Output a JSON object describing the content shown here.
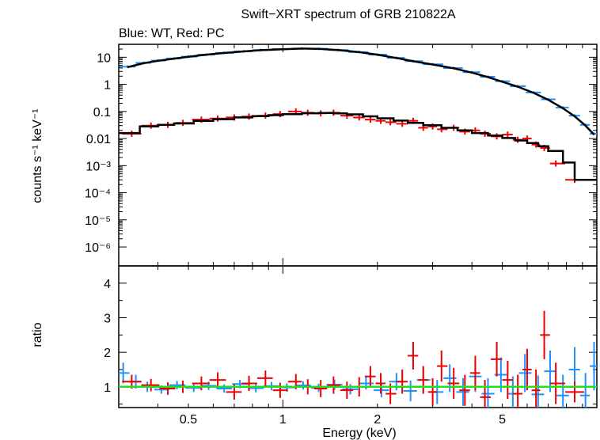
{
  "title": "Swift−XRT spectrum of GRB 210822A",
  "subtitle": "Blue: WT, Red: PC",
  "colors": {
    "wt": "#1e90ff",
    "pc": "#ee0000",
    "model": "#000000",
    "unity": "#22dd22",
    "axis": "#000000"
  },
  "chart_data": [
    {
      "type": "scatter",
      "name": "spectrum-panel",
      "xlabel": "Energy (keV)",
      "ylabel": "counts s⁻¹ keV⁻¹",
      "x_scale": "log",
      "y_scale": "log",
      "xlim": [
        0.3,
        10
      ],
      "ylim": [
        2e-07,
        30
      ],
      "yticks": [
        {
          "value": 10,
          "label": "10"
        },
        {
          "value": 1,
          "label": "1"
        },
        {
          "value": 0.1,
          "label": "0.1"
        },
        {
          "value": 0.01,
          "label": "0.01"
        },
        {
          "value": 0.001,
          "label": "10⁻³"
        },
        {
          "value": 0.0001,
          "label": "10⁻⁴"
        },
        {
          "value": 1e-05,
          "label": "10⁻⁵"
        },
        {
          "value": 1e-06,
          "label": "10⁻⁶"
        }
      ],
      "series": [
        {
          "color": "wt",
          "kind": "data",
          "x": [
            0.32,
            0.36,
            0.4,
            0.45,
            0.5,
            0.57,
            0.65,
            0.75,
            0.85,
            1.0,
            1.15,
            1.3,
            1.5,
            1.75,
            2.0,
            2.3,
            2.6,
            3.0,
            3.5,
            4.0,
            4.5,
            5.0,
            5.6,
            6.3,
            7.0,
            7.8,
            8.5,
            9.2,
            9.8
          ],
          "y": [
            4.5,
            6.2,
            7.5,
            9.0,
            10.5,
            12.5,
            14.5,
            16.5,
            18.5,
            20.0,
            21.0,
            20.5,
            18.5,
            15.5,
            12.5,
            9.5,
            7.2,
            5.5,
            4.0,
            2.8,
            1.9,
            1.3,
            0.85,
            0.5,
            0.28,
            0.14,
            0.07,
            0.032,
            0.015
          ]
        },
        {
          "color": "model",
          "kind": "model",
          "x": [
            0.32,
            0.36,
            0.4,
            0.45,
            0.5,
            0.57,
            0.65,
            0.75,
            0.85,
            1.0,
            1.15,
            1.3,
            1.5,
            1.75,
            2.0,
            2.3,
            2.6,
            3.0,
            3.5,
            4.0,
            4.5,
            5.0,
            5.6,
            6.3,
            7.0,
            7.8,
            8.5,
            9.2,
            9.8
          ],
          "y": [
            4.3,
            6.0,
            7.4,
            8.9,
            10.4,
            12.4,
            14.4,
            16.4,
            18.3,
            19.8,
            20.8,
            20.3,
            18.4,
            15.4,
            12.4,
            9.4,
            7.1,
            5.4,
            3.9,
            2.7,
            1.85,
            1.25,
            0.82,
            0.48,
            0.27,
            0.13,
            0.066,
            0.03,
            0.014
          ]
        },
        {
          "color": "pc",
          "kind": "data",
          "x": [
            0.33,
            0.38,
            0.43,
            0.48,
            0.55,
            0.62,
            0.7,
            0.78,
            0.88,
            0.98,
            1.1,
            1.2,
            1.32,
            1.45,
            1.6,
            1.75,
            1.9,
            2.05,
            2.2,
            2.4,
            2.6,
            2.8,
            3.0,
            3.2,
            3.5,
            3.8,
            4.1,
            4.4,
            4.8,
            5.2,
            5.6,
            6.0,
            6.4,
            6.8,
            7.4,
            8.5
          ],
          "y": [
            0.015,
            0.03,
            0.032,
            0.038,
            0.05,
            0.055,
            0.06,
            0.065,
            0.07,
            0.08,
            0.1,
            0.09,
            0.085,
            0.09,
            0.07,
            0.06,
            0.05,
            0.045,
            0.04,
            0.035,
            0.045,
            0.025,
            0.028,
            0.022,
            0.025,
            0.018,
            0.02,
            0.015,
            0.012,
            0.014,
            0.009,
            0.01,
            0.006,
            0.0045,
            0.0012,
            0.0003
          ]
        },
        {
          "color": "model",
          "kind": "model-step",
          "x": [
            0.3,
            0.35,
            0.4,
            0.45,
            0.52,
            0.6,
            0.7,
            0.8,
            0.9,
            1.0,
            1.15,
            1.3,
            1.45,
            1.6,
            1.8,
            2.0,
            2.25,
            2.5,
            2.8,
            3.2,
            3.6,
            4.0,
            4.5,
            5.0,
            5.5,
            6.0,
            6.5,
            7.0,
            7.8,
            8.5,
            10.0
          ],
          "y": [
            0.016,
            0.028,
            0.032,
            0.036,
            0.045,
            0.052,
            0.06,
            0.067,
            0.073,
            0.08,
            0.086,
            0.088,
            0.085,
            0.078,
            0.066,
            0.056,
            0.046,
            0.038,
            0.031,
            0.025,
            0.02,
            0.016,
            0.013,
            0.0105,
            0.0085,
            0.0068,
            0.0052,
            0.0035,
            0.0013,
            0.0003,
            0.0003
          ]
        }
      ]
    },
    {
      "type": "scatter",
      "name": "ratio-panel",
      "xlabel": "Energy (keV)",
      "ylabel": "ratio",
      "x_scale": "log",
      "y_scale": "linear",
      "xlim": [
        0.3,
        10
      ],
      "ylim": [
        0.4,
        4.5
      ],
      "yticks": [
        1,
        2,
        3,
        4
      ],
      "xticks": [
        {
          "value": 0.5,
          "label": "0.5"
        },
        {
          "value": 1,
          "label": "1"
        },
        {
          "value": 2,
          "label": "2"
        },
        {
          "value": 5,
          "label": "5"
        }
      ],
      "unity": 1,
      "series": [
        {
          "color": "wt",
          "x": [
            0.31,
            0.34,
            0.37,
            0.41,
            0.46,
            0.52,
            0.58,
            0.65,
            0.73,
            0.82,
            0.92,
            1.03,
            1.16,
            1.3,
            1.46,
            1.64,
            1.84,
            2.06,
            2.3,
            2.55,
            2.8,
            3.1,
            3.4,
            3.75,
            4.1,
            4.5,
            4.95,
            5.4,
            5.9,
            6.5,
            7.1,
            7.8,
            8.5,
            9.2,
            9.8
          ],
          "y": [
            1.4,
            1.15,
            1.0,
            0.92,
            1.05,
            0.97,
            1.03,
            0.95,
            1.08,
            0.96,
            1.02,
            0.98,
            1.04,
            0.97,
            1.06,
            0.93,
            1.1,
            0.9,
            1.15,
            0.88,
            1.2,
            0.85,
            1.25,
            0.85,
            1.3,
            0.8,
            1.35,
            0.8,
            1.4,
            0.78,
            1.45,
            0.75,
            1.5,
            0.75,
            1.6
          ],
          "yerr": [
            0.3,
            0.2,
            0.15,
            0.12,
            0.12,
            0.12,
            0.12,
            0.12,
            0.12,
            0.12,
            0.12,
            0.12,
            0.12,
            0.12,
            0.15,
            0.15,
            0.18,
            0.2,
            0.25,
            0.3,
            0.35,
            0.35,
            0.4,
            0.4,
            0.45,
            0.45,
            0.5,
            0.5,
            0.55,
            0.55,
            0.6,
            0.6,
            0.65,
            0.65,
            0.7
          ]
        },
        {
          "color": "pc",
          "x": [
            0.33,
            0.38,
            0.43,
            0.48,
            0.55,
            0.62,
            0.7,
            0.78,
            0.88,
            0.98,
            1.1,
            1.2,
            1.32,
            1.45,
            1.6,
            1.75,
            1.9,
            2.05,
            2.2,
            2.4,
            2.6,
            2.8,
            3.0,
            3.2,
            3.5,
            3.8,
            4.1,
            4.4,
            4.8,
            5.2,
            5.6,
            6.0,
            6.4,
            6.8,
            7.4,
            8.5
          ],
          "y": [
            1.15,
            1.05,
            0.95,
            1.0,
            1.1,
            1.2,
            0.85,
            1.1,
            1.25,
            0.9,
            1.15,
            1.0,
            0.95,
            1.05,
            0.9,
            1.0,
            1.3,
            1.1,
            0.8,
            1.15,
            1.9,
            1.2,
            0.85,
            1.6,
            1.1,
            0.9,
            1.4,
            0.7,
            1.8,
            1.2,
            0.8,
            1.5,
            0.9,
            2.5,
            1.1,
            0.85
          ],
          "yerr": [
            0.2,
            0.18,
            0.18,
            0.18,
            0.2,
            0.22,
            0.22,
            0.22,
            0.22,
            0.22,
            0.22,
            0.22,
            0.25,
            0.25,
            0.25,
            0.28,
            0.3,
            0.3,
            0.3,
            0.35,
            0.4,
            0.4,
            0.4,
            0.45,
            0.45,
            0.45,
            0.5,
            0.5,
            0.5,
            0.55,
            0.55,
            0.6,
            0.6,
            0.7,
            0.6,
            0.3
          ]
        }
      ]
    }
  ]
}
